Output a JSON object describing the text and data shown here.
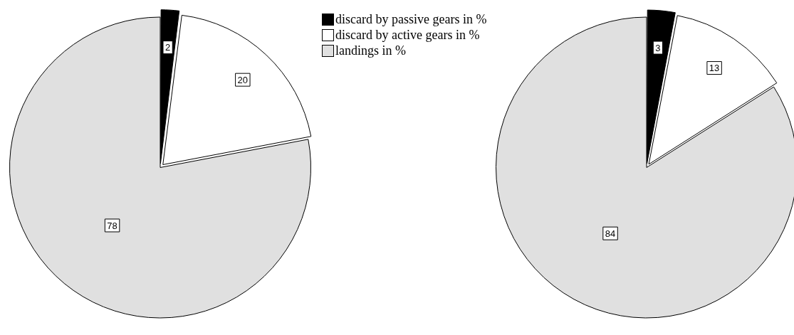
{
  "chart_data": [
    {
      "type": "pie",
      "categories": [
        "discard by passive gears in %",
        "discard by active gears in %",
        "landings in %"
      ],
      "values": [
        2,
        20,
        78
      ],
      "colors": [
        "#000000",
        "#ffffff",
        "#e0e0e0"
      ],
      "data_labels": true,
      "legend": "top right"
    },
    {
      "type": "pie",
      "categories": [
        null,
        null,
        null
      ],
      "values": [
        3,
        13,
        84
      ],
      "colors": [
        "#000000",
        "#ffffff",
        "#e0e0e0"
      ],
      "data_labels": true,
      "legend": false
    }
  ]
}
